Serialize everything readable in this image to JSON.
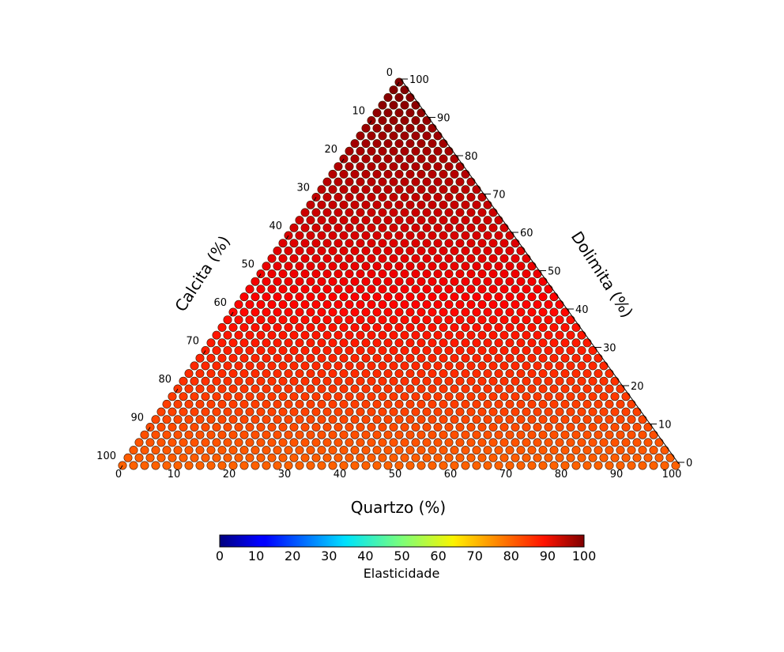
{
  "chart_data": {
    "type": "ternary-heatmap",
    "axes": {
      "bottom": {
        "label": "Quartzo (%)",
        "range": [
          0,
          100
        ],
        "ticks": [
          0,
          10,
          20,
          30,
          40,
          50,
          60,
          70,
          80,
          90,
          100
        ]
      },
      "left": {
        "label": "Calcita (%)",
        "range": [
          0,
          100
        ],
        "ticks": [
          0,
          10,
          20,
          30,
          40,
          50,
          60,
          70,
          80,
          90,
          100
        ]
      },
      "right": {
        "label": "Dolimita (%)",
        "range": [
          0,
          100
        ],
        "ticks": [
          0,
          10,
          20,
          30,
          40,
          50,
          60,
          70,
          80,
          90,
          100
        ]
      }
    },
    "grid_steps": 50,
    "value_model": {
      "description_values": "Elasticidade at vertices",
      "at_bottom_edge": 78,
      "at_top_vertex": 100
    },
    "colorbar": {
      "label": "Elasticidade",
      "range": [
        0,
        100
      ],
      "ticks": [
        0,
        10,
        20,
        30,
        40,
        50,
        60,
        70,
        80,
        90,
        100
      ],
      "colormap": "jet",
      "orientation": "horizontal"
    }
  }
}
